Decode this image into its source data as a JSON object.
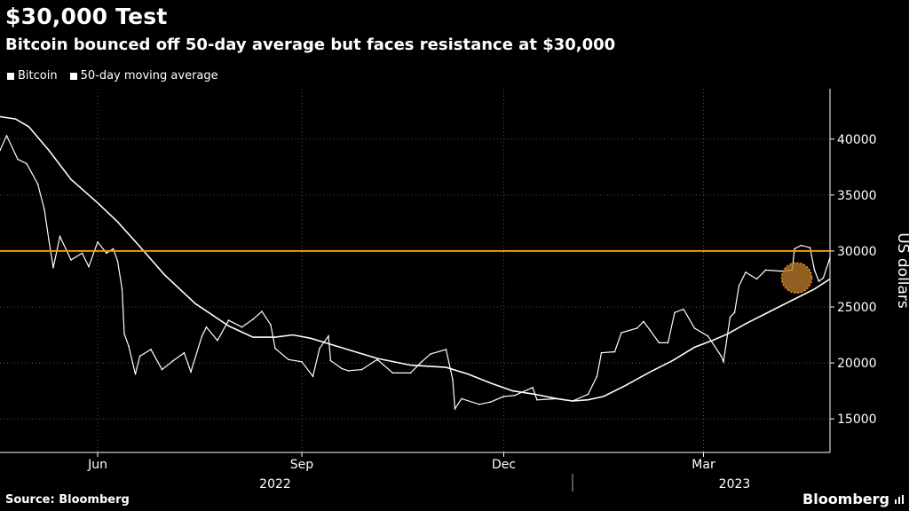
{
  "title": "$30,000 Test",
  "subtitle": "Bitcoin bounced off 50-day average but faces resistance at $30,000",
  "source": "Source: Bloomberg",
  "brand": "Bloomberg",
  "colors": {
    "background": "#000000",
    "series": "#ffffff",
    "resistance": "#f7931e",
    "highlight": "#b7772a"
  },
  "chart_data": {
    "type": "line",
    "ylabel": "US dollars",
    "ylim": [
      12000,
      44500
    ],
    "yticks": [
      15000,
      20000,
      25000,
      30000,
      35000,
      40000
    ],
    "ytick_labels": [
      "15000",
      "20000",
      "25000",
      "30000",
      "35000",
      "40000"
    ],
    "x_range": [
      "2022-04-18",
      "2023-04-27"
    ],
    "xticks": [
      {
        "date": "2022-06-01",
        "label": "Jun"
      },
      {
        "date": "2022-09-01",
        "label": "Sep"
      },
      {
        "date": "2022-12-01",
        "label": "Dec"
      },
      {
        "date": "2023-03-01",
        "label": "Mar"
      }
    ],
    "year_labels": [
      {
        "date": "2022-08-20",
        "label": "2022"
      },
      {
        "date": "2023-03-15",
        "label": "2023"
      }
    ],
    "year_divider": "2023-01-01",
    "grid": true,
    "legend_position": "top-left",
    "resistance_level": 30000,
    "highlight": {
      "date": "2023-04-12",
      "value": 27600
    },
    "series": [
      {
        "name": "Bitcoin",
        "points": [
          [
            "2022-04-18",
            39000
          ],
          [
            "2022-04-21",
            40300
          ],
          [
            "2022-04-26",
            38200
          ],
          [
            "2022-04-30",
            37800
          ],
          [
            "2022-05-05",
            36000
          ],
          [
            "2022-05-08",
            33700
          ],
          [
            "2022-05-10",
            31000
          ],
          [
            "2022-05-12",
            28500
          ],
          [
            "2022-05-15",
            31300
          ],
          [
            "2022-05-20",
            29200
          ],
          [
            "2022-05-25",
            29800
          ],
          [
            "2022-05-28",
            28600
          ],
          [
            "2022-06-01",
            30800
          ],
          [
            "2022-06-05",
            29800
          ],
          [
            "2022-06-08",
            30200
          ],
          [
            "2022-06-10",
            29100
          ],
          [
            "2022-06-12",
            26600
          ],
          [
            "2022-06-13",
            22600
          ],
          [
            "2022-06-15",
            21500
          ],
          [
            "2022-06-18",
            19000
          ],
          [
            "2022-06-20",
            20600
          ],
          [
            "2022-06-25",
            21200
          ],
          [
            "2022-06-30",
            19400
          ],
          [
            "2022-07-05",
            20200
          ],
          [
            "2022-07-10",
            20900
          ],
          [
            "2022-07-13",
            19200
          ],
          [
            "2022-07-18",
            22400
          ],
          [
            "2022-07-20",
            23200
          ],
          [
            "2022-07-25",
            22000
          ],
          [
            "2022-07-30",
            23800
          ],
          [
            "2022-08-05",
            23200
          ],
          [
            "2022-08-10",
            23900
          ],
          [
            "2022-08-14",
            24600
          ],
          [
            "2022-08-18",
            23400
          ],
          [
            "2022-08-20",
            21300
          ],
          [
            "2022-08-26",
            20300
          ],
          [
            "2022-09-01",
            20100
          ],
          [
            "2022-09-06",
            18800
          ],
          [
            "2022-09-09",
            21300
          ],
          [
            "2022-09-13",
            22400
          ],
          [
            "2022-09-14",
            20200
          ],
          [
            "2022-09-19",
            19500
          ],
          [
            "2022-09-22",
            19300
          ],
          [
            "2022-09-28",
            19400
          ],
          [
            "2022-10-05",
            20300
          ],
          [
            "2022-10-12",
            19100
          ],
          [
            "2022-10-20",
            19100
          ],
          [
            "2022-10-25",
            20100
          ],
          [
            "2022-10-29",
            20800
          ],
          [
            "2022-11-05",
            21200
          ],
          [
            "2022-11-08",
            18500
          ],
          [
            "2022-11-09",
            15900
          ],
          [
            "2022-11-12",
            16800
          ],
          [
            "2022-11-20",
            16300
          ],
          [
            "2022-11-25",
            16500
          ],
          [
            "2022-12-01",
            17000
          ],
          [
            "2022-12-06",
            17100
          ],
          [
            "2022-12-14",
            17800
          ],
          [
            "2022-12-16",
            16700
          ],
          [
            "2022-12-25",
            16800
          ],
          [
            "2023-01-01",
            16600
          ],
          [
            "2023-01-08",
            17200
          ],
          [
            "2023-01-12",
            18800
          ],
          [
            "2023-01-14",
            20900
          ],
          [
            "2023-01-20",
            21000
          ],
          [
            "2023-01-23",
            22700
          ],
          [
            "2023-01-30",
            23100
          ],
          [
            "2023-02-02",
            23700
          ],
          [
            "2023-02-05",
            22900
          ],
          [
            "2023-02-09",
            21800
          ],
          [
            "2023-02-13",
            21800
          ],
          [
            "2023-02-16",
            24500
          ],
          [
            "2023-02-20",
            24800
          ],
          [
            "2023-02-25",
            23100
          ],
          [
            "2023-03-03",
            22400
          ],
          [
            "2023-03-09",
            20600
          ],
          [
            "2023-03-10",
            20100
          ],
          [
            "2023-03-13",
            24100
          ],
          [
            "2023-03-15",
            24500
          ],
          [
            "2023-03-17",
            26900
          ],
          [
            "2023-03-20",
            28100
          ],
          [
            "2023-03-25",
            27500
          ],
          [
            "2023-03-29",
            28300
          ],
          [
            "2023-04-05",
            28200
          ],
          [
            "2023-04-10",
            28300
          ],
          [
            "2023-04-11",
            30200
          ],
          [
            "2023-04-14",
            30500
          ],
          [
            "2023-04-18",
            30300
          ],
          [
            "2023-04-20",
            28300
          ],
          [
            "2023-04-22",
            27300
          ],
          [
            "2023-04-24",
            27600
          ],
          [
            "2023-04-27",
            29400
          ]
        ]
      },
      {
        "name": "50-day moving average",
        "points": [
          [
            "2022-04-18",
            42000
          ],
          [
            "2022-04-25",
            41800
          ],
          [
            "2022-05-01",
            41100
          ],
          [
            "2022-05-10",
            39000
          ],
          [
            "2022-05-20",
            36400
          ],
          [
            "2022-06-01",
            34300
          ],
          [
            "2022-06-10",
            32600
          ],
          [
            "2022-06-20",
            30400
          ],
          [
            "2022-07-01",
            27900
          ],
          [
            "2022-07-15",
            25300
          ],
          [
            "2022-07-30",
            23300
          ],
          [
            "2022-08-10",
            22300
          ],
          [
            "2022-08-20",
            22300
          ],
          [
            "2022-08-28",
            22500
          ],
          [
            "2022-09-05",
            22200
          ],
          [
            "2022-09-15",
            21600
          ],
          [
            "2022-09-25",
            21000
          ],
          [
            "2022-10-05",
            20400
          ],
          [
            "2022-10-20",
            19800
          ],
          [
            "2022-11-05",
            19600
          ],
          [
            "2022-11-15",
            19000
          ],
          [
            "2022-11-25",
            18200
          ],
          [
            "2022-12-05",
            17500
          ],
          [
            "2022-12-15",
            17200
          ],
          [
            "2022-12-25",
            16800
          ],
          [
            "2023-01-01",
            16600
          ],
          [
            "2023-01-08",
            16700
          ],
          [
            "2023-01-15",
            17000
          ],
          [
            "2023-01-25",
            18000
          ],
          [
            "2023-02-05",
            19200
          ],
          [
            "2023-02-15",
            20200
          ],
          [
            "2023-02-25",
            21400
          ],
          [
            "2023-03-05",
            22000
          ],
          [
            "2023-03-12",
            22600
          ],
          [
            "2023-03-20",
            23500
          ],
          [
            "2023-03-31",
            24600
          ],
          [
            "2023-04-10",
            25600
          ],
          [
            "2023-04-20",
            26600
          ],
          [
            "2023-04-27",
            27500
          ]
        ]
      }
    ]
  }
}
